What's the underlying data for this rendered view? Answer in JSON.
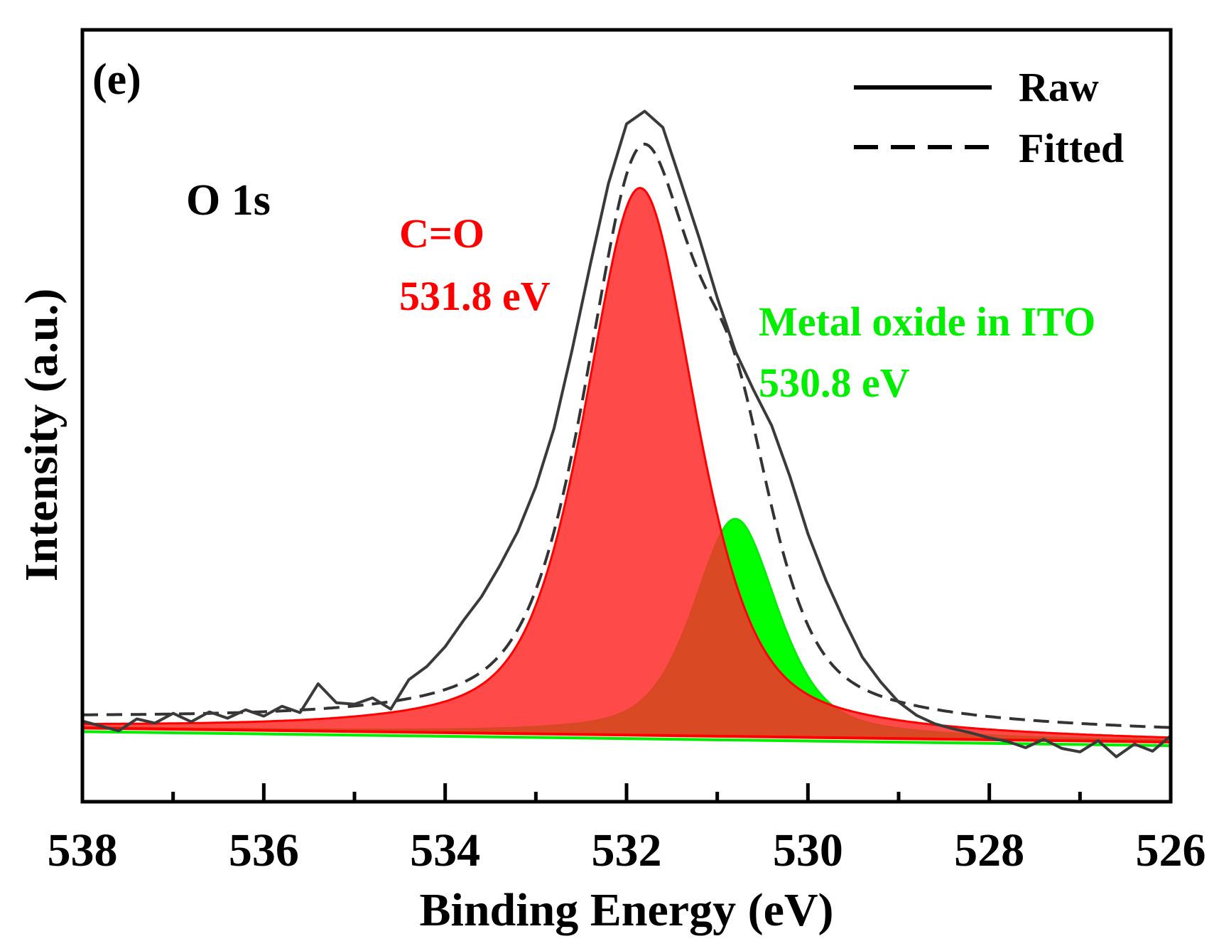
{
  "chart_data": {
    "type": "line",
    "panel_label": "(e)",
    "title": "O 1s",
    "xlabel": "Binding Energy (eV)",
    "ylabel": "Intensity (a.u.)",
    "xlim": [
      538,
      526
    ],
    "ylim": [
      -8,
      102
    ],
    "x_ticks": [
      538,
      536,
      534,
      532,
      530,
      528,
      526
    ],
    "x_tick_labels": [
      "538",
      "536",
      "534",
      "532",
      "530",
      "528",
      "526"
    ],
    "legend": {
      "position": "top-right",
      "entries": [
        {
          "label": "Raw",
          "style": "solid"
        },
        {
          "label": "Fitted",
          "style": "dashed"
        }
      ]
    },
    "peaks": [
      {
        "name": "C=O",
        "energy_label": "531.8 eV",
        "center": 531.85,
        "height": 78,
        "fwhm": 1.45,
        "color": "#ff0000",
        "fill": "#ff2a2a"
      },
      {
        "name": "Metal oxide in ITO",
        "energy_label": "530.8 eV",
        "center": 530.8,
        "height": 31,
        "fwhm": 1.1,
        "color": "#00ee00",
        "fill": "#00ff00"
      }
    ],
    "background": {
      "start": 2.5,
      "end": 0.5
    },
    "series": [
      {
        "name": "Raw",
        "x": [
          538.0,
          537.8,
          537.6,
          537.4,
          537.2,
          537.0,
          536.8,
          536.6,
          536.4,
          536.2,
          536.0,
          535.8,
          535.6,
          535.4,
          535.2,
          535.0,
          534.8,
          534.6,
          534.4,
          534.2,
          534.0,
          533.8,
          533.6,
          533.4,
          533.2,
          533.0,
          532.8,
          532.6,
          532.4,
          532.2,
          532.0,
          531.8,
          531.6,
          531.4,
          531.2,
          531.0,
          530.8,
          530.6,
          530.4,
          530.2,
          530.0,
          529.8,
          529.6,
          529.4,
          529.2,
          529.0,
          528.8,
          528.6,
          528.4,
          528.2,
          528.0,
          527.8,
          527.6,
          527.4,
          527.2,
          527.0,
          526.8,
          526.6,
          526.4,
          526.2,
          526.0
        ],
        "y": [
          3.5,
          2.8,
          2.1,
          3.8,
          3.2,
          4.6,
          3.4,
          4.8,
          3.9,
          5.1,
          4.2,
          5.6,
          4.7,
          8.8,
          6.1,
          5.9,
          6.8,
          5.2,
          9.4,
          11.3,
          14.1,
          17.8,
          21.2,
          25.6,
          30.5,
          36.9,
          45.2,
          56.4,
          68.5,
          80.1,
          88.6,
          90.4,
          88.1,
          80.3,
          72.4,
          63.8,
          56.2,
          50.7,
          45.6,
          38.4,
          30.2,
          23.5,
          17.8,
          12.6,
          9.1,
          6.2,
          4.3,
          3.1,
          2.4,
          1.8,
          1.1,
          0.6,
          -0.3,
          0.9,
          -0.4,
          -0.9,
          0.7,
          -1.6,
          0.2,
          -0.8,
          1.4
        ]
      }
    ]
  },
  "colors": {
    "axis": "#000000",
    "raw": "#3a3a3a",
    "fitted": "#333333",
    "label_red": "#ff0000",
    "label_green": "#00ee00"
  }
}
